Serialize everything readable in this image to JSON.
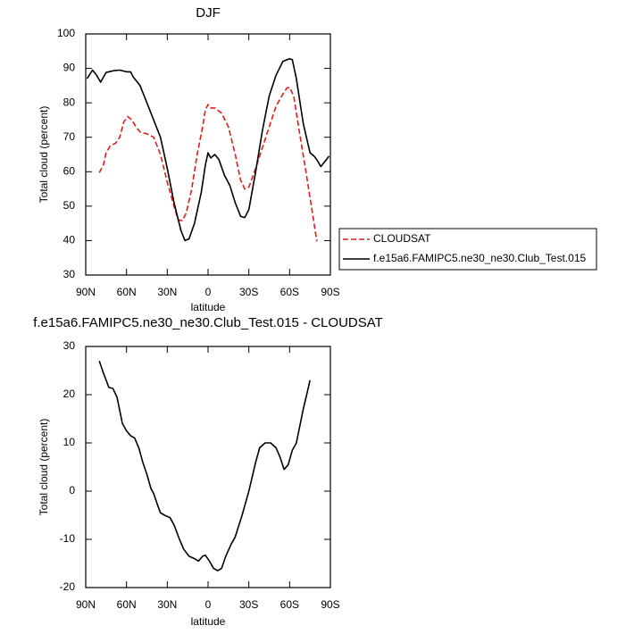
{
  "chart_data": [
    {
      "type": "line",
      "title": "DJF",
      "xlabel": "latitude",
      "ylabel": "Total cloud (percent)",
      "xlim": [
        90,
        -90
      ],
      "xticks": [
        {
          "value": 90,
          "label": "90N"
        },
        {
          "value": 60,
          "label": "60N"
        },
        {
          "value": 30,
          "label": "30N"
        },
        0,
        {
          "value": -30,
          "label": "30S"
        },
        {
          "value": -60,
          "label": "60S"
        },
        {
          "value": -90,
          "label": "90S"
        }
      ],
      "ylim": [
        30,
        100
      ],
      "yticks": [
        30,
        40,
        50,
        60,
        70,
        80,
        90,
        100
      ],
      "legend": "right",
      "series": [
        {
          "name": "CLOUDSAT",
          "color": "#e41a1c",
          "dashed": true,
          "x": [
            80,
            77,
            75,
            72,
            68,
            65,
            62,
            59,
            56,
            53,
            50,
            45,
            40,
            35,
            30,
            25,
            22,
            19,
            16,
            12,
            8,
            4,
            2,
            0,
            -2,
            -5,
            -10,
            -15,
            -20,
            -24,
            -27,
            -30,
            -35,
            -40,
            -45,
            -50,
            -55,
            -58,
            -60,
            -63,
            -67,
            -72,
            -76,
            -80
          ],
          "values": [
            59.7,
            62,
            65.5,
            67.5,
            68.3,
            70,
            74.5,
            76,
            75,
            73,
            71.5,
            71,
            70,
            65,
            57,
            50,
            46,
            45.8,
            48,
            55,
            65,
            73,
            78,
            79.5,
            78.5,
            78.5,
            77,
            73,
            65,
            57.5,
            55,
            55.5,
            61,
            67,
            73,
            79,
            82.5,
            84.3,
            84.5,
            82,
            72,
            60,
            50,
            39.8
          ]
        },
        {
          "name": "f.e15a6.FAMIPC5.ne30_ne30.Club_Test.015",
          "color": "#000000",
          "dashed": false,
          "x": [
            89,
            85,
            82,
            79,
            75,
            70,
            65,
            60,
            57,
            55,
            50,
            45,
            40,
            35,
            30,
            25,
            20,
            17,
            14,
            10,
            5,
            2,
            0,
            -2,
            -5,
            -8,
            -12,
            -16,
            -20,
            -24,
            -27,
            -30,
            -35,
            -40,
            -45,
            -50,
            -55,
            -60,
            -62,
            -65,
            -70,
            -75,
            -78,
            -80,
            -83,
            -86,
            -89
          ],
          "values": [
            87,
            89.5,
            88,
            86,
            88.8,
            89.3,
            89.5,
            89,
            89,
            87.5,
            85,
            80,
            75,
            70,
            61,
            51,
            43,
            40,
            40.5,
            45,
            54,
            62,
            65.5,
            64,
            65,
            63.5,
            59,
            56,
            51,
            47,
            46.7,
            49,
            60,
            72,
            82,
            88,
            92,
            92.8,
            92.5,
            87,
            74,
            65.5,
            64.5,
            63.5,
            61.5,
            63,
            64.5
          ]
        }
      ]
    },
    {
      "type": "line",
      "title": "f.e15a6.FAMIPC5.ne30_ne30.Club_Test.015 - CLOUDSAT",
      "xlabel": "latitude",
      "ylabel": "Total cloud (percent)",
      "xlim": [
        90,
        -90
      ],
      "xticks": [
        {
          "value": 90,
          "label": "90N"
        },
        {
          "value": 60,
          "label": "60N"
        },
        {
          "value": 30,
          "label": "30N"
        },
        0,
        {
          "value": -30,
          "label": "30S"
        },
        {
          "value": -60,
          "label": "60S"
        },
        {
          "value": -90,
          "label": "90S"
        }
      ],
      "ylim": [
        -20,
        30
      ],
      "yticks": [
        -20,
        -10,
        0,
        10,
        20,
        30
      ],
      "series": [
        {
          "color": "#000000",
          "dashed": false,
          "x": [
            80,
            77,
            73,
            70,
            67,
            63,
            60,
            57,
            54,
            51,
            48,
            45,
            42,
            40,
            37,
            35,
            32,
            28,
            25,
            21,
            18,
            14,
            10,
            7,
            4,
            2,
            -1,
            -4,
            -7,
            -10,
            -13,
            -17,
            -20,
            -25,
            -30,
            -35,
            -38,
            -42,
            -46,
            -50,
            -53,
            -56,
            -59,
            -62,
            -65,
            -70,
            -73,
            -75
          ],
          "values": [
            27,
            24.5,
            21.5,
            21.3,
            19.5,
            14,
            12.5,
            11.5,
            11,
            9,
            6,
            3.5,
            0.5,
            -0.5,
            -3,
            -4.5,
            -5,
            -5.5,
            -7,
            -10,
            -12,
            -13.5,
            -14,
            -14.5,
            -13.5,
            -13.3,
            -14.5,
            -16,
            -16.5,
            -16,
            -13.5,
            -11,
            -9.5,
            -5,
            0,
            6,
            9,
            10,
            10,
            9,
            7,
            4.5,
            5.5,
            8.5,
            10,
            17,
            20.5,
            23
          ]
        }
      ]
    }
  ]
}
